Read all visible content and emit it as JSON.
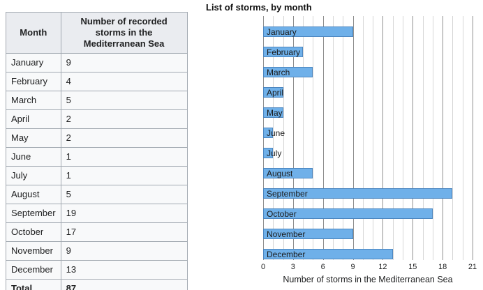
{
  "table": {
    "headers": [
      "Month",
      "Number of recorded storms in the Mediterranean Sea"
    ],
    "rows": [
      [
        "January",
        "9"
      ],
      [
        "February",
        "4"
      ],
      [
        "March",
        "5"
      ],
      [
        "April",
        "2"
      ],
      [
        "May",
        "2"
      ],
      [
        "June",
        "1"
      ],
      [
        "July",
        "1"
      ],
      [
        "August",
        "5"
      ],
      [
        "September",
        "19"
      ],
      [
        "October",
        "17"
      ],
      [
        "November",
        "9"
      ],
      [
        "December",
        "13"
      ]
    ],
    "total_label": "Total",
    "total_value": "87"
  },
  "chart_data": {
    "type": "bar",
    "orientation": "horizontal",
    "title": "List of storms, by month",
    "categories": [
      "January",
      "February",
      "March",
      "April",
      "May",
      "June",
      "July",
      "August",
      "September",
      "October",
      "November",
      "December"
    ],
    "values": [
      9,
      4,
      5,
      2,
      2,
      1,
      1,
      5,
      19,
      17,
      9,
      13
    ],
    "xlabel": "Number of storms in the Mediterranean Sea",
    "xlim": [
      0,
      21
    ],
    "xticks": [
      0,
      3,
      6,
      9,
      12,
      15,
      18,
      21
    ],
    "minor_grid_step": 1,
    "major_grid_step": 3,
    "grid": "vertical",
    "legend": "none",
    "colors": {
      "bar_fill": "#6FB0E9",
      "bar_border": "#4C86C0",
      "grid_minor": "#d6d6d6",
      "grid_major": "#8f8f8f",
      "table_header_bg": "#eaecf0",
      "table_cell_bg": "#f8f9fa",
      "table_border": "#a2a9b1",
      "text": "#202122"
    }
  }
}
